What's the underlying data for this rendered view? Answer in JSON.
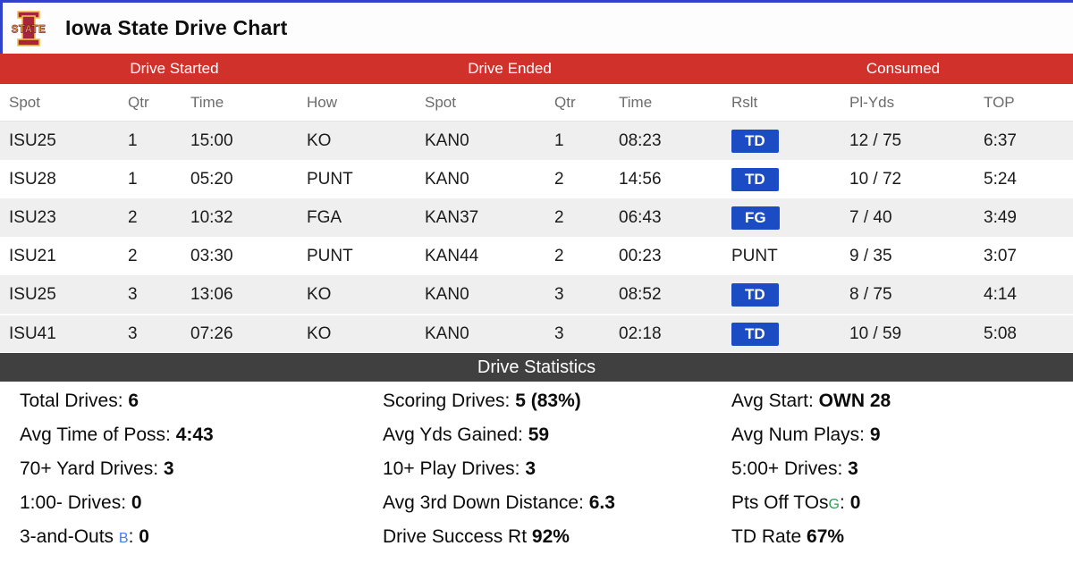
{
  "page": {
    "top_border_color": "#3142cc"
  },
  "header": {
    "title": "Iowa State Drive Chart",
    "logo": {
      "name": "iowa-state-logo",
      "letter": "I",
      "word": "STATE",
      "cardinal": "#a6253a",
      "gold": "#f1be48"
    }
  },
  "drive_table": {
    "colors": {
      "header_bar": "#d0322b",
      "badge": "#1b4cc4",
      "row_alt": "#efefef",
      "stats_bar": "#404040"
    },
    "group_headers": [
      "Drive Started",
      "Drive Ended",
      "Consumed"
    ],
    "columns": [
      "Spot",
      "Qtr",
      "Time",
      "How",
      "Spot",
      "Qtr",
      "Time",
      "Rslt",
      "Pl-Yds",
      "TOP"
    ],
    "rows": [
      {
        "start_spot": "ISU25",
        "start_qtr": "1",
        "start_time": "15:00",
        "how": "KO",
        "end_spot": "KAN0",
        "end_qtr": "1",
        "end_time": "08:23",
        "rslt": "TD",
        "rslt_badge": true,
        "pl_yds": "12 / 75",
        "top": "6:37"
      },
      {
        "start_spot": "ISU28",
        "start_qtr": "1",
        "start_time": "05:20",
        "how": "PUNT",
        "end_spot": "KAN0",
        "end_qtr": "2",
        "end_time": "14:56",
        "rslt": "TD",
        "rslt_badge": true,
        "pl_yds": "10 / 72",
        "top": "5:24"
      },
      {
        "start_spot": "ISU23",
        "start_qtr": "2",
        "start_time": "10:32",
        "how": "FGA",
        "end_spot": "KAN37",
        "end_qtr": "2",
        "end_time": "06:43",
        "rslt": "FG",
        "rslt_badge": true,
        "pl_yds": "7 / 40",
        "top": "3:49"
      },
      {
        "start_spot": "ISU21",
        "start_qtr": "2",
        "start_time": "03:30",
        "how": "PUNT",
        "end_spot": "KAN44",
        "end_qtr": "2",
        "end_time": "00:23",
        "rslt": "PUNT",
        "rslt_badge": false,
        "pl_yds": "9 / 35",
        "top": "3:07"
      },
      {
        "start_spot": "ISU25",
        "start_qtr": "3",
        "start_time": "13:06",
        "how": "KO",
        "end_spot": "KAN0",
        "end_qtr": "3",
        "end_time": "08:52",
        "rslt": "TD",
        "rslt_badge": true,
        "pl_yds": "8 / 75",
        "top": "4:14"
      },
      {
        "start_spot": "ISU41",
        "start_qtr": "3",
        "start_time": "07:26",
        "how": "KO",
        "end_spot": "KAN0",
        "end_qtr": "3",
        "end_time": "02:18",
        "rslt": "TD",
        "rslt_badge": true,
        "pl_yds": "10 / 59",
        "top": "5:08"
      }
    ],
    "shaded_rows": [
      0,
      2,
      4,
      5
    ]
  },
  "stats": {
    "title": "Drive Statistics",
    "items": [
      {
        "label": "Total Drives:",
        "sup": "",
        "sup_color": "",
        "post": "",
        "value": "6"
      },
      {
        "label": "Scoring Drives:",
        "sup": "",
        "sup_color": "",
        "post": "",
        "value": "5 (83%)"
      },
      {
        "label": "Avg Start:",
        "sup": "",
        "sup_color": "",
        "post": "",
        "value": "OWN 28"
      },
      {
        "label": "Avg Time of Poss:",
        "sup": "",
        "sup_color": "",
        "post": "",
        "value": "4:43"
      },
      {
        "label": "Avg Yds Gained:",
        "sup": "",
        "sup_color": "",
        "post": "",
        "value": "59"
      },
      {
        "label": "Avg Num Plays:",
        "sup": "",
        "sup_color": "",
        "post": "",
        "value": "9"
      },
      {
        "label": "70+ Yard Drives:",
        "sup": "",
        "sup_color": "",
        "post": "",
        "value": "3"
      },
      {
        "label": "10+ Play Drives:",
        "sup": "",
        "sup_color": "",
        "post": "",
        "value": "3"
      },
      {
        "label": "5:00+ Drives:",
        "sup": "",
        "sup_color": "",
        "post": "",
        "value": "3"
      },
      {
        "label": "1:00- Drives:",
        "sup": "",
        "sup_color": "",
        "post": "",
        "value": "0"
      },
      {
        "label": "Avg 3rd Down Distance:",
        "sup": "",
        "sup_color": "",
        "post": "",
        "value": "6.3"
      },
      {
        "label": "Pts Off TOs",
        "sup": "G",
        "sup_color": "#2e9e5b",
        "post": ":",
        "value": "0"
      },
      {
        "label": "3-and-Outs ",
        "sup": "B",
        "sup_color": "#4080f0",
        "post": ":",
        "value": "0"
      },
      {
        "label": "Drive Success Rt",
        "sup": "",
        "sup_color": "",
        "post": "",
        "value": "92%"
      },
      {
        "label": "TD Rate",
        "sup": "",
        "sup_color": "",
        "post": "",
        "value": "67%"
      }
    ]
  }
}
